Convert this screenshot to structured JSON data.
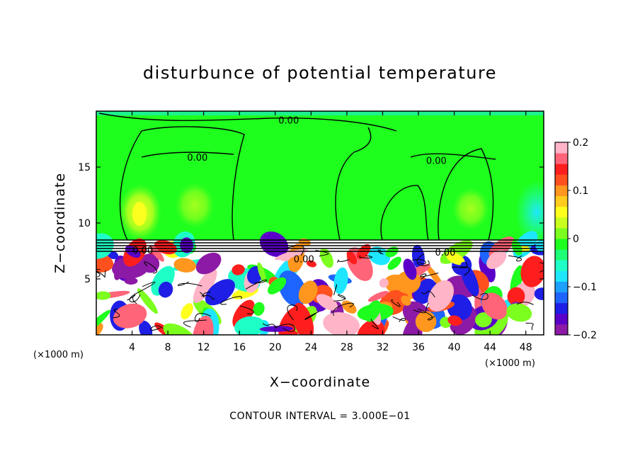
{
  "chart_data": {
    "type": "heatmap",
    "title": "disturbunce of potential temperature",
    "xlabel": "X−coordinate",
    "ylabel": "Z−coordinate",
    "x_unit_left": "(×1000 m)",
    "x_unit_right": "(×1000 m)",
    "footer": "CONTOUR INTERVAL = 3.000E−01",
    "xlim": [
      0,
      50
    ],
    "ylim": [
      0,
      20
    ],
    "x_ticks": [
      4,
      8,
      12,
      16,
      20,
      24,
      28,
      32,
      36,
      40,
      44,
      48
    ],
    "x_tick_labels": [
      "4",
      "8",
      "12",
      "16",
      "20",
      "24",
      "28",
      "32",
      "36",
      "40",
      "44",
      "48"
    ],
    "y_ticks": [
      5,
      10,
      15
    ],
    "y_tick_labels": [
      "5",
      "10",
      "15"
    ],
    "colorbar": {
      "range": [
        -0.2,
        0.2
      ],
      "ticks": [
        -0.2,
        -0.1,
        0,
        0.1,
        0.2
      ],
      "tick_labels": [
        "−0.2",
        "−0.1",
        "0",
        "0.1",
        "0.2"
      ],
      "colors": [
        "#8c1aa6",
        "#5a00c8",
        "#1e1ee6",
        "#1e64ff",
        "#1ea0ff",
        "#1ee6ff",
        "#1effc8",
        "#1eff78",
        "#1eff1e",
        "#7cff1e",
        "#c8ff1e",
        "#ffff1e",
        "#ffcc1e",
        "#ff961e",
        "#ff501e",
        "#ff1e1e",
        "#ff6478",
        "#ffb4c8"
      ]
    },
    "contour_labels": [
      {
        "text": "0.00",
        "x": 21.5,
        "z": 19.2
      },
      {
        "text": "0.00",
        "x": 11.3,
        "z": 15.9
      },
      {
        "text": "0.00",
        "x": 38.0,
        "z": 15.6
      },
      {
        "text": "0.00",
        "x": 5.2,
        "z": 7.6
      },
      {
        "text": "0.00",
        "x": 23.2,
        "z": 6.8
      },
      {
        "text": "0.00",
        "x": 39.0,
        "z": 7.4
      }
    ],
    "upper_layer_value_range": [
      -0.02,
      0.06
    ],
    "lower_layer_value_range": [
      -0.2,
      0.2
    ],
    "layer_boundary_z": 8.5
  }
}
